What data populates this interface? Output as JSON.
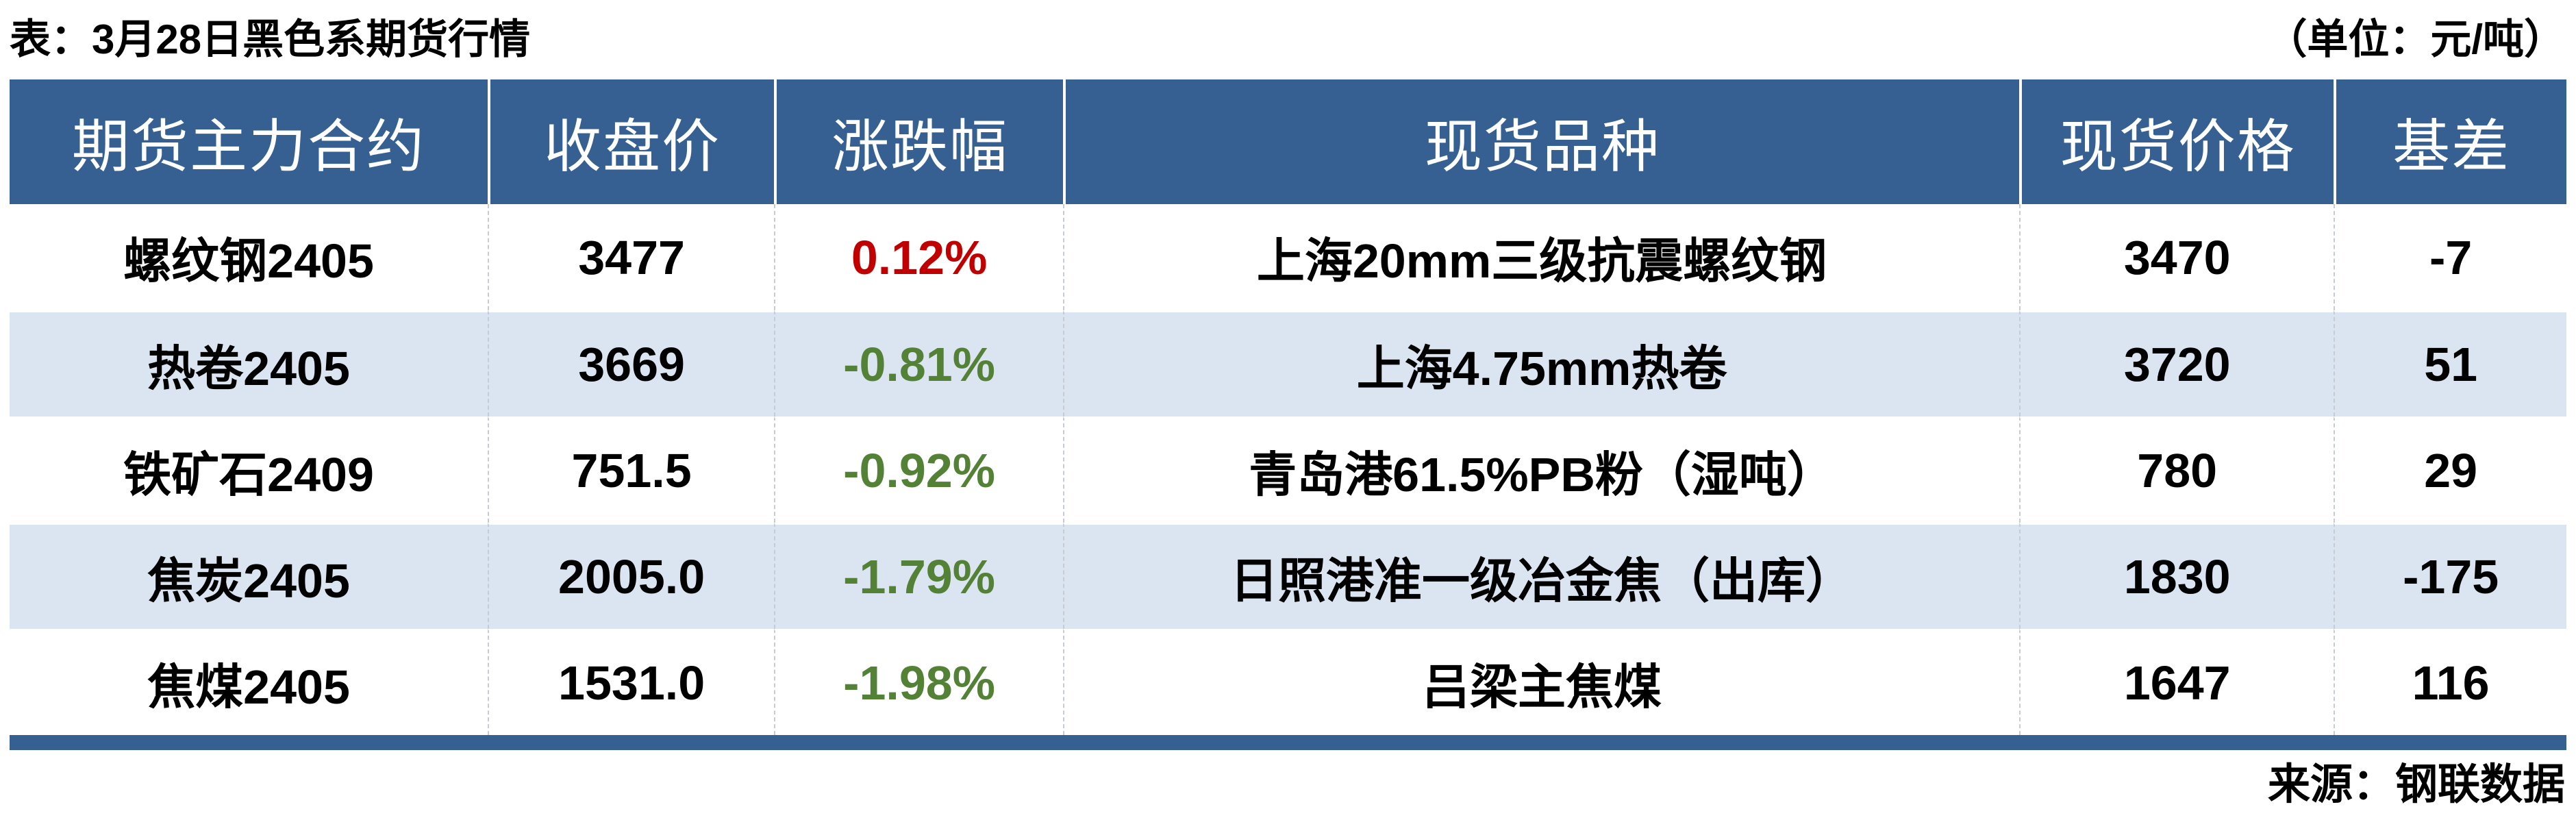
{
  "title": "表：3月28日黑色系期货行情",
  "unit_label": "（单位：元/吨）",
  "source_label": "来源：钢联数据",
  "colors": {
    "header_bg": "#366092",
    "alt_row_bg": "#dbe5f1",
    "up_red": "#c00000",
    "down_green": "#538135"
  },
  "chart_data": {
    "type": "table",
    "title": "3月28日黑色系期货行情",
    "unit": "元/吨",
    "columns": [
      "期货主力合约",
      "收盘价",
      "涨跌幅",
      "现货品种",
      "现货价格",
      "基差"
    ],
    "rows": [
      {
        "contract": "螺纹钢2405",
        "close": "3477",
        "change": "0.12%",
        "change_dir": "up",
        "spot": "上海20mm三级抗震螺纹钢",
        "spot_price": "3470",
        "basis": "-7"
      },
      {
        "contract": "热卷2405",
        "close": "3669",
        "change": "-0.81%",
        "change_dir": "down",
        "spot": "上海4.75mm热卷",
        "spot_price": "3720",
        "basis": "51"
      },
      {
        "contract": "铁矿石2409",
        "close": "751.5",
        "change": "-0.92%",
        "change_dir": "down",
        "spot": "青岛港61.5%PB粉（湿吨）",
        "spot_price": "780",
        "basis": "29"
      },
      {
        "contract": "焦炭2405",
        "close": "2005.0",
        "change": "-1.79%",
        "change_dir": "down",
        "spot": "日照港准一级冶金焦（出库）",
        "spot_price": "1830",
        "basis": "-175"
      },
      {
        "contract": "焦煤2405",
        "close": "1531.0",
        "change": "-1.98%",
        "change_dir": "down",
        "spot": "吕梁主焦煤",
        "spot_price": "1647",
        "basis": "116"
      }
    ],
    "source": "钢联数据"
  }
}
